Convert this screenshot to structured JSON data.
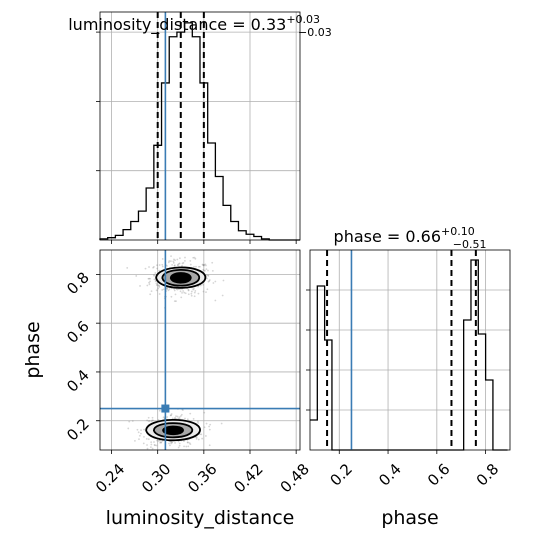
{
  "chart_data": {
    "type": "corner",
    "parameters": [
      "luminosity_distance",
      "phase"
    ],
    "injected_values": {
      "luminosity_distance": 0.31,
      "phase": 0.25
    },
    "colors": {
      "truth": "#3a7cb4",
      "histogram": "#000000",
      "grid": "#b0b0b0",
      "points": "#888888"
    },
    "grid": true,
    "panels": [
      {
        "panel": "luminosity_distance-marginal",
        "type": "step-histogram",
        "title": {
          "main": "luminosity_distance = 0.33",
          "sup": "+0.03",
          "sub": "−0.03"
        },
        "xlim": [
          0.225,
          0.485
        ],
        "quantile_lines": [
          0.3,
          0.33,
          0.36
        ],
        "truth_line": 0.31,
        "bin_width": 0.01,
        "bin_starts": [
          0.225,
          0.235,
          0.245,
          0.255,
          0.265,
          0.275,
          0.285,
          0.295,
          0.305,
          0.315,
          0.325,
          0.335,
          0.345,
          0.355,
          0.365,
          0.375,
          0.385,
          0.395,
          0.405,
          0.415,
          0.425,
          0.435,
          0.445,
          0.455,
          0.465,
          0.475
        ],
        "counts": [
          1,
          2,
          4,
          9,
          16,
          25,
          45,
          82,
          136,
          176,
          180,
          188,
          176,
          136,
          84,
          55,
          30,
          16,
          8,
          5,
          3,
          1,
          0,
          0,
          0,
          0
        ]
      },
      {
        "panel": "phase-marginal",
        "type": "step-histogram",
        "title": {
          "main": "phase = 0.66",
          "sup": "+0.10",
          "sub": "−0.51"
        },
        "xlim": [
          0.08,
          0.9
        ],
        "xticks": [
          0.2,
          0.4,
          0.6,
          0.8
        ],
        "xtick_labels": [
          "0.2",
          "0.4",
          "0.6",
          "0.8"
        ],
        "quantile_lines": [
          0.15,
          0.66,
          0.76
        ],
        "truth_line": 0.25,
        "bin_width": 0.03,
        "bin_starts": [
          0.08,
          0.11,
          0.14,
          0.17,
          0.2,
          0.23,
          0.26,
          0.29,
          0.32,
          0.35,
          0.38,
          0.41,
          0.44,
          0.47,
          0.5,
          0.53,
          0.56,
          0.59,
          0.62,
          0.65,
          0.68,
          0.71,
          0.74,
          0.77,
          0.8,
          0.83,
          0.86
        ],
        "counts": [
          0.15,
          0.82,
          0.55,
          0.0,
          0.0,
          0.0,
          0.0,
          0.0,
          0.0,
          0.0,
          0.0,
          0.0,
          0.0,
          0.0,
          0.0,
          0.0,
          0.0,
          0.0,
          0.0,
          0.0,
          0.0,
          0.65,
          0.95,
          0.58,
          0.35,
          0.0,
          0.0
        ],
        "xlabel": "phase"
      },
      {
        "panel": "phase-vs-luminosity_distance",
        "type": "2d-density",
        "xlim": [
          0.225,
          0.485
        ],
        "ylim": [
          0.08,
          0.9
        ],
        "xticks": [
          0.24,
          0.3,
          0.36,
          0.42,
          0.48
        ],
        "xtick_labels": [
          "0.24",
          "0.30",
          "0.36",
          "0.42",
          "0.48"
        ],
        "yticks": [
          0.2,
          0.4,
          0.6,
          0.8
        ],
        "ytick_labels": [
          "0.2",
          "0.4",
          "0.6",
          "0.8"
        ],
        "xlabel": "luminosity_distance",
        "ylabel": "phase",
        "truth_point": [
          0.31,
          0.25
        ],
        "modes": [
          {
            "cx": 0.33,
            "cy": 0.785,
            "levels": [
              {
                "rx": 0.032,
                "ry": 0.053
              },
              {
                "rx": 0.024,
                "ry": 0.041
              },
              {
                "rx": 0.013,
                "ry": 0.025
              }
            ],
            "cloud": {
              "sx": 0.02,
              "sy": 0.036,
              "n": 430
            }
          },
          {
            "cx": 0.32,
            "cy": 0.16,
            "levels": [
              {
                "rx": 0.035,
                "ry": 0.053
              },
              {
                "rx": 0.025,
                "ry": 0.037
              },
              {
                "rx": 0.013,
                "ry": 0.02
              }
            ],
            "cloud": {
              "sx": 0.02,
              "sy": 0.036,
              "n": 330
            }
          }
        ]
      }
    ]
  }
}
